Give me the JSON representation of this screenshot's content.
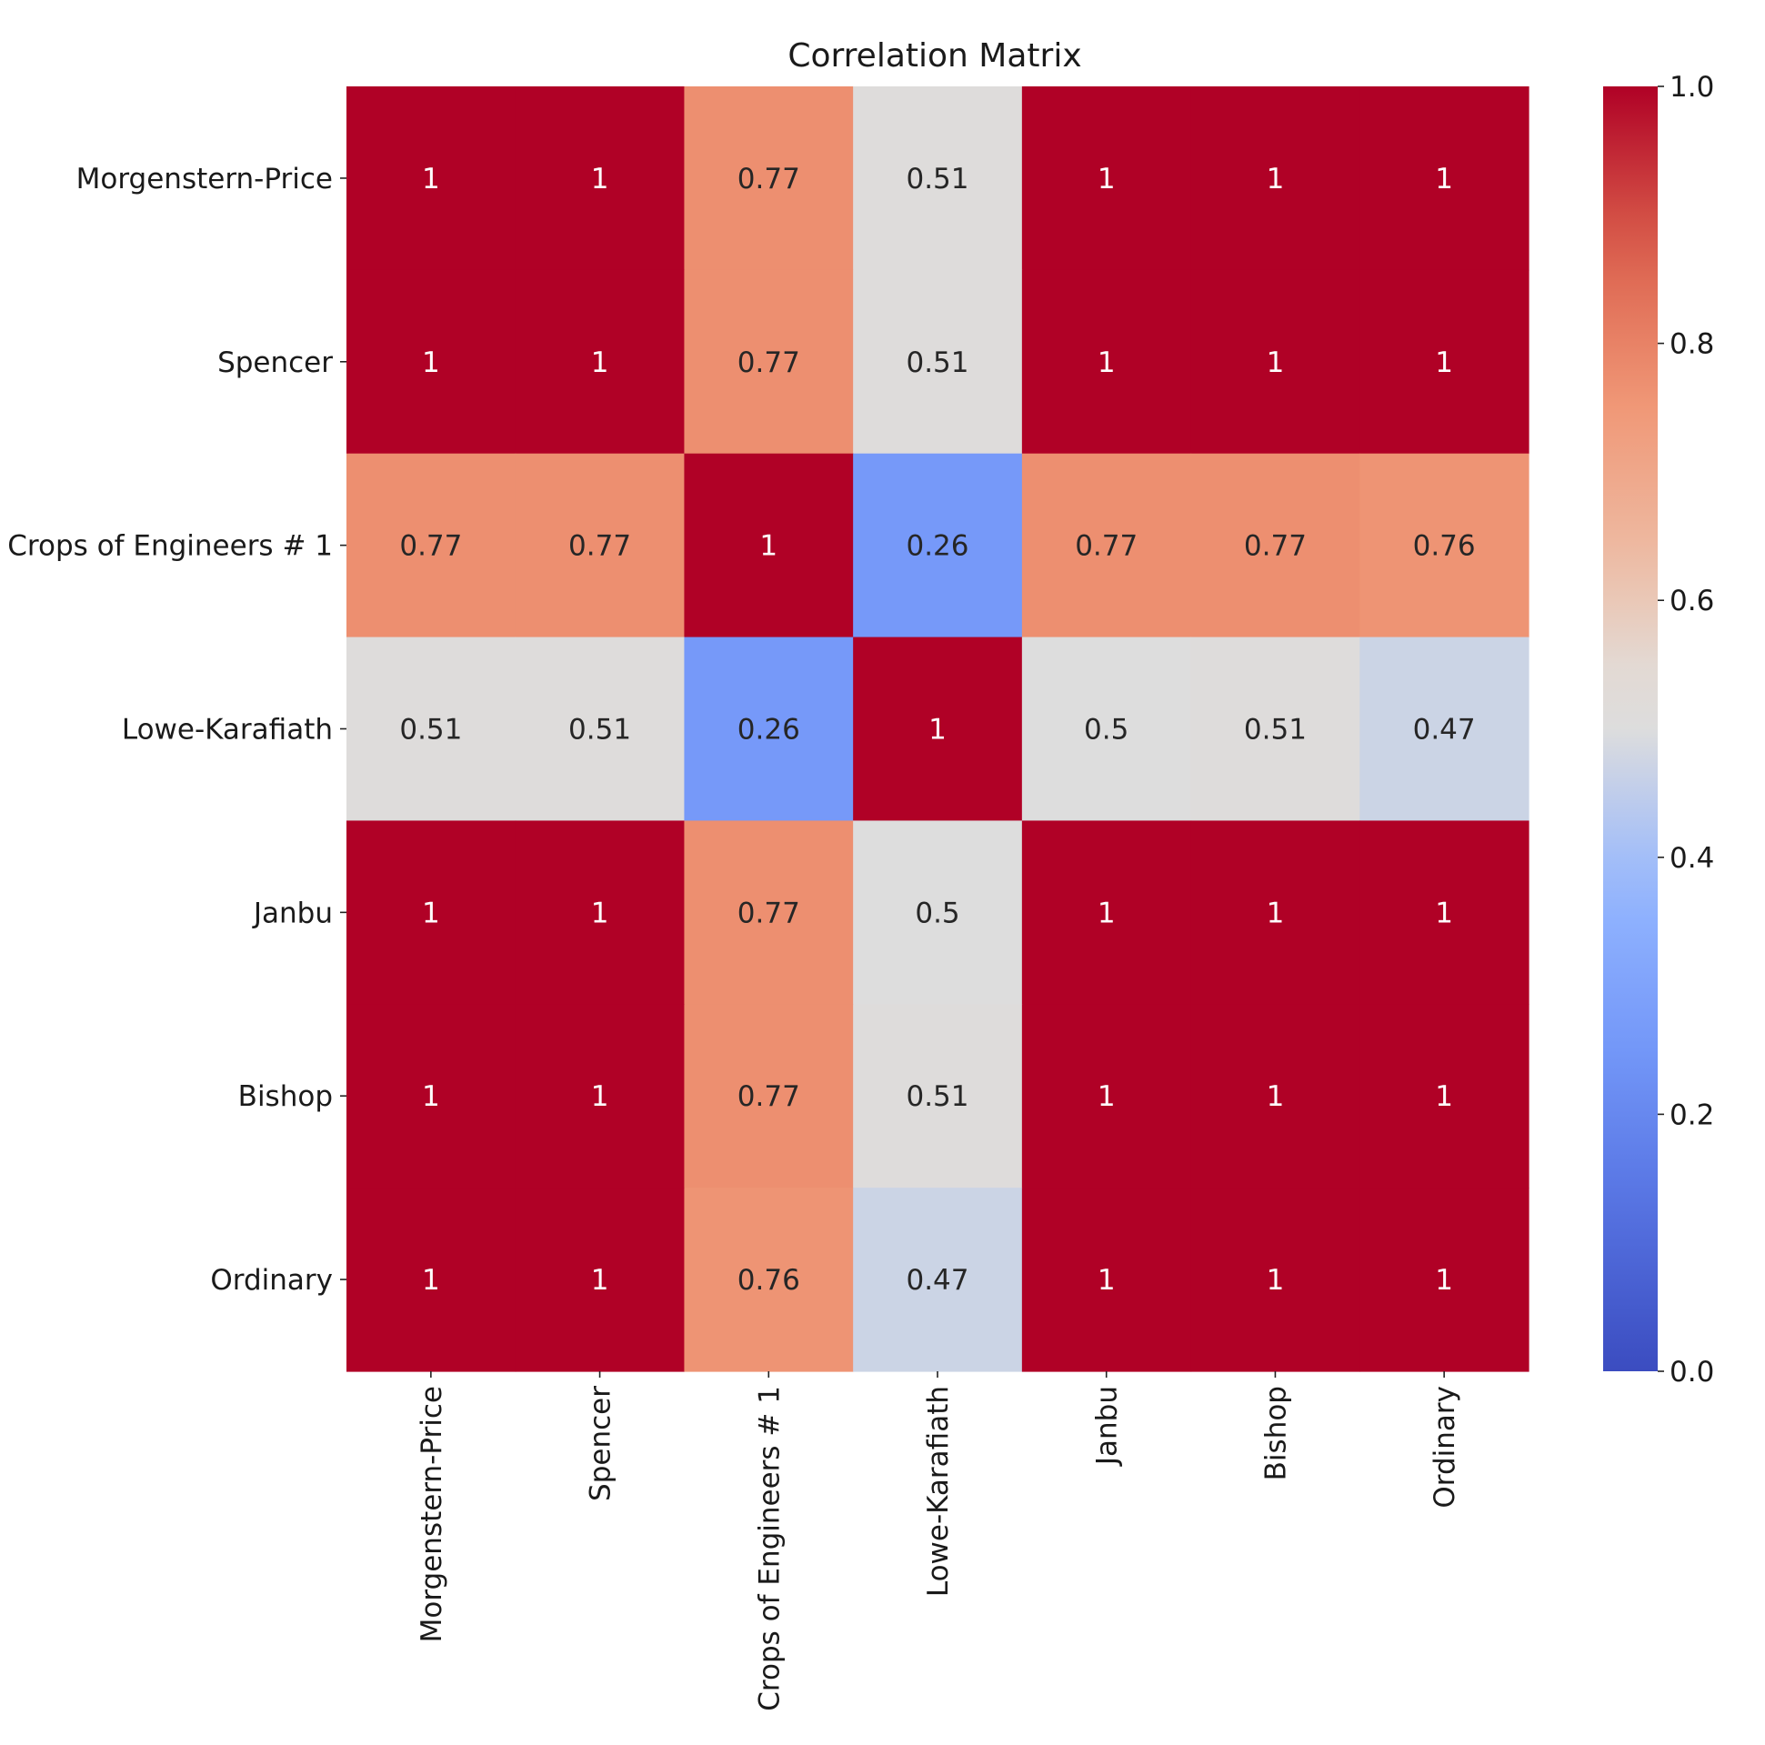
{
  "chart_data": {
    "type": "heatmap",
    "title": "Correlation Matrix",
    "colormap": "coolwarm",
    "vmin": 0.0,
    "vmax": 1.0,
    "rows": [
      "Morgenstern-Price",
      "Spencer",
      "Crops of Engineers # 1",
      "Lowe-Karafiath",
      "Janbu",
      "Bishop",
      "Ordinary"
    ],
    "columns": [
      "Morgenstern-Price",
      "Spencer",
      "Crops of Engineers # 1",
      "Lowe-Karafiath",
      "Janbu",
      "Bishop",
      "Ordinary"
    ],
    "values": [
      [
        1.0,
        1.0,
        0.77,
        0.51,
        1.0,
        1.0,
        1.0
      ],
      [
        1.0,
        1.0,
        0.77,
        0.51,
        1.0,
        1.0,
        1.0
      ],
      [
        0.77,
        0.77,
        1.0,
        0.26,
        0.77,
        0.77,
        0.76
      ],
      [
        0.51,
        0.51,
        0.26,
        1.0,
        0.5,
        0.51,
        0.47
      ],
      [
        1.0,
        1.0,
        0.77,
        0.5,
        1.0,
        1.0,
        1.0
      ],
      [
        1.0,
        1.0,
        0.77,
        0.51,
        1.0,
        1.0,
        1.0
      ],
      [
        1.0,
        1.0,
        0.76,
        0.47,
        1.0,
        1.0,
        1.0
      ]
    ],
    "annotations": [
      [
        "1",
        "1",
        "0.77",
        "0.51",
        "1",
        "1",
        "1"
      ],
      [
        "1",
        "1",
        "0.77",
        "0.51",
        "1",
        "1",
        "1"
      ],
      [
        "0.77",
        "0.77",
        "1",
        "0.26",
        "0.77",
        "0.77",
        "0.76"
      ],
      [
        "0.51",
        "0.51",
        "0.26",
        "1",
        "0.5",
        "0.51",
        "0.47"
      ],
      [
        "1",
        "1",
        "0.77",
        "0.5",
        "1",
        "1",
        "1"
      ],
      [
        "1",
        "1",
        "0.77",
        "0.51",
        "1",
        "1",
        "1"
      ],
      [
        "1",
        "1",
        "0.76",
        "0.47",
        "1",
        "1",
        "1"
      ]
    ],
    "colorbar": {
      "ticks": [
        0.0,
        0.2,
        0.4,
        0.6,
        0.8,
        1.0
      ],
      "tick_labels": [
        "0.0",
        "0.2",
        "0.4",
        "0.6",
        "0.8",
        "1.0"
      ]
    },
    "xlabel": "",
    "ylabel": ""
  }
}
